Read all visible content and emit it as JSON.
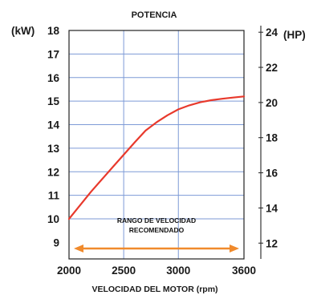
{
  "chart_data": {
    "type": "line",
    "title": "POTENCIA",
    "xlabel": "VELOCIDAD DEL MOTOR (rpm)",
    "ylabel_left": "(kW)",
    "ylabel_right": "(HP)",
    "xlim": [
      2000,
      3600
    ],
    "ylim": [
      8.3,
      18
    ],
    "y2lim": [
      11.1,
      24.1
    ],
    "x_ticks": [
      2000,
      2500,
      3000,
      3600
    ],
    "x_gridlines": [
      2000,
      2500,
      3000,
      3600
    ],
    "y_ticks": [
      9,
      10,
      11,
      12,
      13,
      14,
      15,
      16,
      17,
      18
    ],
    "y_gridlines": [
      10,
      11,
      12,
      13,
      14,
      15,
      16,
      17
    ],
    "y2_ticks": [
      12,
      14,
      16,
      18,
      20,
      22,
      24
    ],
    "grid": true,
    "series": [
      {
        "color": "#e8392c",
        "points": [
          [
            2000,
            10.0
          ],
          [
            2200,
            11.15
          ],
          [
            2400,
            12.2
          ],
          [
            2600,
            13.25
          ],
          [
            2700,
            13.75
          ],
          [
            2800,
            14.1
          ],
          [
            2900,
            14.4
          ],
          [
            3000,
            14.65
          ],
          [
            3100,
            14.82
          ],
          [
            3200,
            14.95
          ],
          [
            3300,
            15.04
          ],
          [
            3400,
            15.1
          ],
          [
            3500,
            15.15
          ],
          [
            3600,
            15.2
          ]
        ]
      }
    ],
    "annotation": {
      "text_line1": "RANGO DE VELOCIDAD",
      "text_line2": "RECOMENDADO",
      "range": [
        2000,
        3600
      ],
      "arrow_color": "#f08a2c"
    }
  },
  "colors": {
    "grid": "#7d9ad6",
    "curve": "#e8392c",
    "arrow": "#f08a2c",
    "axis": "#222222"
  }
}
